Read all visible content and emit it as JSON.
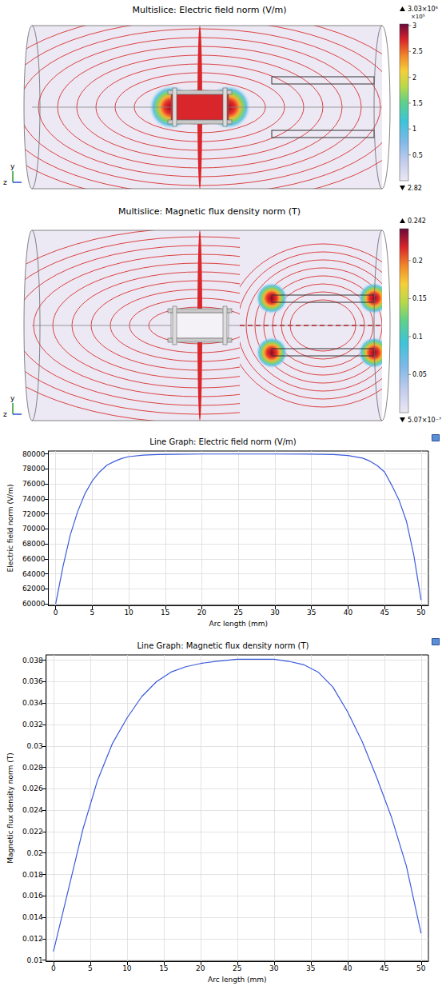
{
  "chart_data": [
    {
      "type": "field_map",
      "title": "Multislice: Electric field norm (V/m)",
      "axes": [
        "y",
        "z"
      ],
      "colorbar": {
        "min": 2.82,
        "max": 303000,
        "max_label": "3.03×10⁵",
        "multiplier": "×10⁵",
        "ticks": [
          {
            "value": 50000,
            "label": "0.5"
          },
          {
            "value": 100000,
            "label": "1"
          },
          {
            "value": 150000,
            "label": "1.5"
          },
          {
            "value": 200000,
            "label": "2"
          },
          {
            "value": 250000,
            "label": "2.5"
          },
          {
            "value": 300000,
            "label": "3"
          }
        ]
      }
    },
    {
      "type": "field_map",
      "title": "Multislice: Magnetic flux density norm (T)",
      "axes": [
        "y",
        "z"
      ],
      "colorbar": {
        "min": 5.07e-07,
        "min_label": "5.07×10⁻⁷",
        "max": 0.242,
        "ticks": [
          0.05,
          0.1,
          0.15,
          0.2
        ]
      }
    },
    {
      "type": "line",
      "title": "Line Graph: Electric field norm (V/m)",
      "xlabel": "Arc length (mm)",
      "ylabel": "Electric field norm (V/m)",
      "color": "#3b5bdb",
      "grid": true,
      "x": [
        0,
        1,
        2,
        3,
        4,
        5,
        6,
        7,
        8,
        9,
        10,
        12,
        14,
        16,
        20,
        25,
        30,
        35,
        38,
        40,
        42,
        43,
        44,
        45,
        46,
        47,
        48,
        49,
        50
      ],
      "values": [
        60000,
        65000,
        69200,
        72300,
        74700,
        76400,
        77600,
        78500,
        79000,
        79400,
        79650,
        79850,
        79930,
        79970,
        80000,
        80000,
        80000,
        79980,
        79930,
        79800,
        79450,
        79050,
        78450,
        77600,
        75800,
        73800,
        71000,
        66500,
        60500
      ],
      "xlim": [
        -1,
        51
      ],
      "xticks": [
        0,
        5,
        10,
        15,
        20,
        25,
        30,
        35,
        40,
        45,
        50
      ],
      "ylim": [
        59800,
        80400
      ],
      "yticks": [
        60000,
        62000,
        64000,
        66000,
        68000,
        70000,
        72000,
        74000,
        76000,
        78000,
        80000
      ]
    },
    {
      "type": "line",
      "title": "Line Graph: Magnetic flux density norm (T)",
      "xlabel": "Arc length (mm)",
      "ylabel": "Magnetic flux density norm (T)",
      "color": "#3b5bdb",
      "grid": true,
      "x": [
        0,
        2,
        4,
        5,
        6,
        8,
        10,
        12,
        14,
        16,
        18,
        20,
        22,
        25,
        28,
        30,
        32,
        34,
        36,
        38,
        40,
        42,
        44,
        46,
        48,
        50
      ],
      "values": [
        0.0108,
        0.0165,
        0.0222,
        0.0245,
        0.0268,
        0.0302,
        0.0326,
        0.0346,
        0.036,
        0.0369,
        0.0374,
        0.0377,
        0.0379,
        0.0381,
        0.0381,
        0.0381,
        0.0379,
        0.0376,
        0.0369,
        0.0355,
        0.0332,
        0.0304,
        0.027,
        0.0233,
        0.0188,
        0.0125
      ],
      "xlim": [
        -1,
        51
      ],
      "xticks": [
        0,
        5,
        10,
        15,
        20,
        25,
        30,
        35,
        40,
        45,
        50
      ],
      "ylim": [
        0.0099,
        0.0385
      ],
      "yticks": [
        0.01,
        0.012,
        0.014,
        0.016,
        0.018,
        0.02,
        0.022,
        0.024,
        0.026,
        0.028,
        0.03,
        0.032,
        0.034,
        0.036,
        0.038
      ]
    }
  ]
}
